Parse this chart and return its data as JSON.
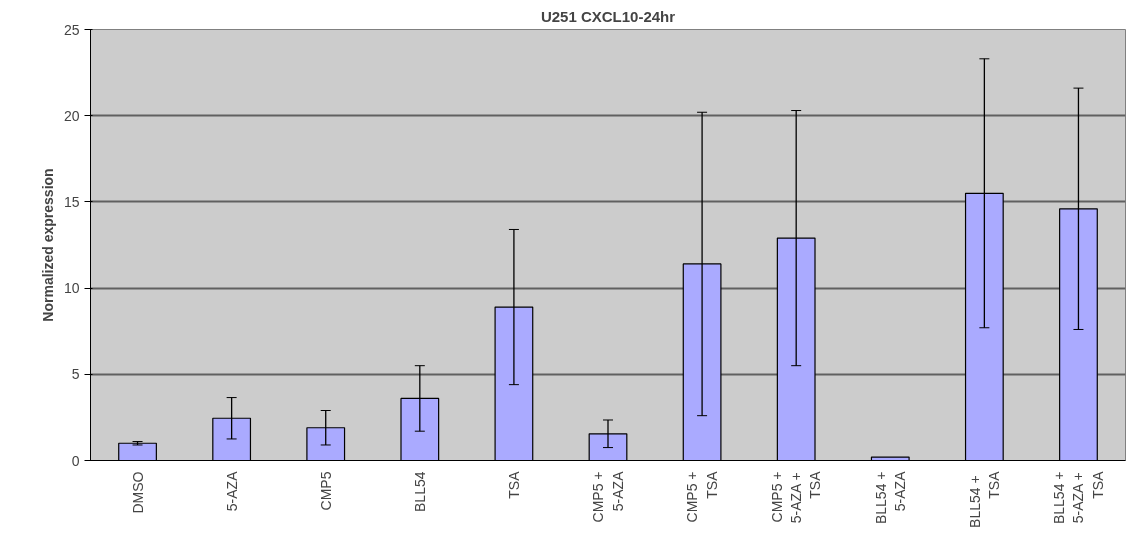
{
  "chart_data": {
    "type": "bar",
    "title": "U251 CXCL10-24hr",
    "ylabel": "Normalized expression",
    "categories": [
      "DMSO",
      "5-AZA",
      "CMP5",
      "BLL54",
      "TSA",
      "CMP5 +\n5-AZA",
      "CMP5 +\nTSA",
      "CMP5 +\n5-AZA +\nTSA",
      "BLL54 +\n5-AZA",
      "BLL54  +\nTSA",
      "BLL54 +\n5-AZA +\nTSA"
    ],
    "values": [
      1.0,
      2.45,
      1.9,
      3.6,
      8.9,
      1.55,
      11.4,
      12.9,
      0.2,
      15.5,
      14.6
    ],
    "errors": [
      0.1,
      1.2,
      1.0,
      1.9,
      4.5,
      0.8,
      8.8,
      7.4,
      null,
      7.8,
      7.0
    ],
    "color": "#aaaaff",
    "ylim": [
      0,
      25
    ],
    "yticks": [
      0,
      5,
      10,
      15,
      20,
      25
    ],
    "grid": "y"
  }
}
